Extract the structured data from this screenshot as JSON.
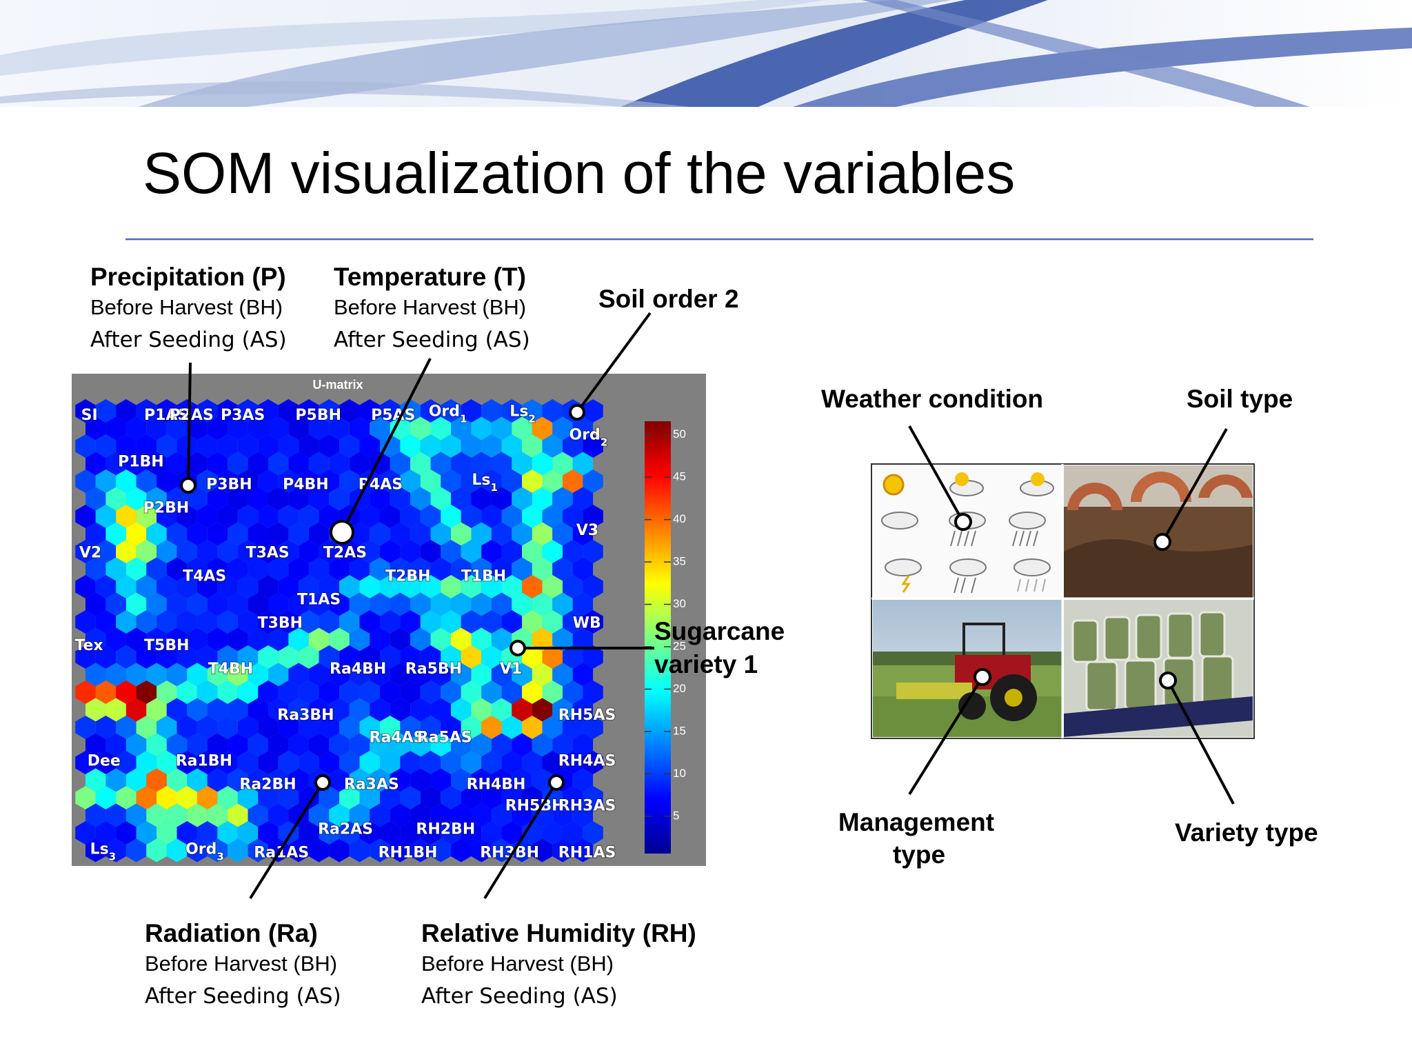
{
  "header": {
    "title": "SOM visualization of the variables"
  },
  "annotations": {
    "precipitation": {
      "title": "Precipitation (P)",
      "line1": "Before Harvest (BH)",
      "line2": "After Seeding (AS)"
    },
    "temperature": {
      "title": "Temperature (T)",
      "line1": "Before Harvest (BH)",
      "line2": "After Seeding (AS)"
    },
    "radiation": {
      "title": "Radiation (Ra)",
      "line1": "Before Harvest (BH)",
      "line2": "After Seeding (AS)"
    },
    "relative_humidity": {
      "title": "Relative Humidity (RH)",
      "line1": "Before Harvest (BH)",
      "line2": "After Seeding (AS)"
    },
    "soil_order": "Soil order 2",
    "sugarcane": [
      "Sugarcane",
      "variety 1"
    ]
  },
  "umatrix": {
    "title": "U-matrix",
    "colorbar": {
      "lim": [
        0.6,
        51.6
      ],
      "ticks": [
        5,
        10,
        15,
        20,
        25,
        30,
        35,
        40,
        45,
        50
      ]
    },
    "labels": [
      {
        "text": "SI"
      },
      {
        "text": "P1AS"
      },
      {
        "text": "P2AS"
      },
      {
        "text": "P3AS"
      },
      {
        "text": "P5BH"
      },
      {
        "text": "P5AS"
      },
      {
        "text": "Ord",
        "sub": "1"
      },
      {
        "text": "Ls",
        "sub": "2"
      },
      {
        "text": "Ord",
        "sub": "2"
      },
      {
        "text": "P1BH"
      },
      {
        "text": "P3BH"
      },
      {
        "text": "P4BH"
      },
      {
        "text": "P4AS"
      },
      {
        "text": "Ls",
        "sub": "1"
      },
      {
        "text": "P2BH"
      },
      {
        "text": "V3"
      },
      {
        "text": "V2"
      },
      {
        "text": "T3AS"
      },
      {
        "text": "T2AS"
      },
      {
        "text": "T4AS"
      },
      {
        "text": "T2BH"
      },
      {
        "text": "T1BH"
      },
      {
        "text": "T1AS"
      },
      {
        "text": "T3BH"
      },
      {
        "text": "WB"
      },
      {
        "text": "Tex"
      },
      {
        "text": "T5BH"
      },
      {
        "text": "T4BH"
      },
      {
        "text": "Ra4BH"
      },
      {
        "text": "Ra5BH"
      },
      {
        "text": "V1"
      },
      {
        "text": "Ra3BH"
      },
      {
        "text": "RH5AS"
      },
      {
        "text": "Ra4AS"
      },
      {
        "text": "Ra5AS"
      },
      {
        "text": "Dee"
      },
      {
        "text": "Ra1BH"
      },
      {
        "text": "RH4AS"
      },
      {
        "text": "Ra2BH"
      },
      {
        "text": "Ra3AS"
      },
      {
        "text": "RH4BH"
      },
      {
        "text": "RH5BH"
      },
      {
        "text": "RH3AS"
      },
      {
        "text": "Ra2AS"
      },
      {
        "text": "RH2BH"
      },
      {
        "text": "Ls",
        "sub": "3"
      },
      {
        "text": "Ord",
        "sub": "3"
      },
      {
        "text": "Ra1AS"
      },
      {
        "text": "RH1BH"
      },
      {
        "text": "RH3BH"
      },
      {
        "text": "RH1AS"
      }
    ]
  },
  "panel": {
    "weather": "Weather condition",
    "soil": "Soil type",
    "management": [
      "Management",
      "type"
    ],
    "variety": "Variety type"
  }
}
